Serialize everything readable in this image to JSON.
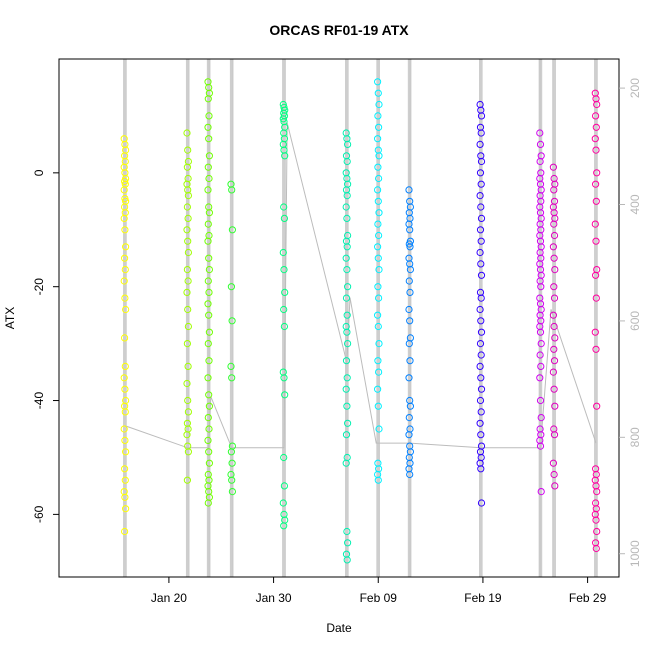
{
  "chart_data": {
    "type": "scatter",
    "title": "ORCAS RF01-19 ATX",
    "xlabel": "Date",
    "ylabel": "ATX",
    "x_ticks": [
      "Jan 20",
      "Jan 30",
      "Feb 09",
      "Feb 19",
      "Feb 29"
    ],
    "x_tick_days": [
      20,
      30,
      40,
      50,
      60
    ],
    "xlim_days": [
      9.5,
      63.0
    ],
    "y_ticks": [
      0,
      -20,
      -40,
      -60
    ],
    "ylim": [
      -71,
      20
    ],
    "y2_ticks": [
      200,
      400,
      600,
      800,
      1000
    ],
    "y2lim": [
      1040,
      150
    ],
    "grid": false,
    "flights": [
      {
        "day": 15.8,
        "color": "#ffff00",
        "atx": [
          6,
          5,
          4,
          3,
          2,
          1,
          0,
          -1,
          -1.5,
          -2,
          -3,
          -4.5,
          -5,
          -6,
          -7,
          -8,
          -10,
          -13,
          -15,
          -17,
          -19,
          -22,
          -24,
          -29,
          -34,
          -36,
          -38,
          -40,
          -41,
          -42,
          -45,
          -47,
          -49,
          -52,
          -54,
          -56,
          -57,
          -59,
          -63
        ]
      },
      {
        "day": 21.8,
        "color": "#a0ff00",
        "atx": [
          7,
          4,
          2,
          1,
          -1,
          -2,
          -3,
          -4,
          -6,
          -8,
          -10,
          -12,
          -14,
          -17,
          -19,
          -21,
          -24,
          -27,
          -30,
          -34,
          -37,
          -40,
          -42,
          -44,
          -45,
          -46,
          -48,
          -49,
          -54
        ]
      },
      {
        "day": 23.8,
        "color": "#70ff00",
        "atx": [
          16,
          15,
          14,
          13,
          10,
          8,
          6,
          3,
          1,
          -1,
          -3,
          -6,
          -7,
          -9,
          -11,
          -12,
          -15,
          -17,
          -19,
          -21,
          -23,
          -25,
          -28,
          -30,
          -33,
          -36,
          -39,
          -41,
          -43,
          -45,
          -47,
          -49,
          -51,
          -53,
          -54,
          -55,
          -56,
          -57,
          -58
        ]
      },
      {
        "day": 26.0,
        "color": "#30ff30",
        "atx": [
          -2,
          -3,
          -10,
          -20,
          -26,
          -34,
          -36,
          -48,
          -49,
          -51,
          -53,
          -54,
          -56
        ]
      },
      {
        "day": 31.0,
        "color": "#00ff80",
        "atx": [
          12,
          11.5,
          11,
          10.5,
          10,
          9.5,
          9,
          8,
          7,
          6,
          5,
          4,
          3,
          -6,
          -8,
          -14,
          -17,
          -21,
          -24,
          -27,
          -35,
          -36,
          -39,
          -50,
          -55,
          -58,
          -60,
          -61,
          -62
        ]
      },
      {
        "day": 37.0,
        "color": "#00f0b0",
        "atx": [
          7,
          6,
          5,
          3,
          2,
          0,
          -1,
          -2,
          -3,
          -4,
          -6,
          -8,
          -11,
          -12,
          -13,
          -15,
          -17,
          -20,
          -22,
          -25,
          -27,
          -28,
          -30,
          -33,
          -36,
          -38,
          -41,
          -44,
          -46,
          -50,
          -51,
          -63,
          -65,
          -67,
          -68
        ]
      },
      {
        "day": 40.0,
        "color": "#00f0ff",
        "atx": [
          16,
          14,
          12,
          10,
          8,
          6,
          4,
          3,
          1,
          -1,
          -3,
          -5,
          -7,
          -9,
          -11,
          -13,
          -15,
          -17,
          -20,
          -22,
          -25,
          -27,
          -30,
          -33,
          -35,
          -38,
          -41,
          -45,
          -51,
          -52,
          -53,
          -54
        ]
      },
      {
        "day": 43.0,
        "color": "#0080ff",
        "atx": [
          -3,
          -5,
          -6,
          -7,
          -8,
          -9,
          -10,
          -12,
          -12.5,
          -13,
          -15,
          -16,
          -17,
          -19,
          -21,
          -24,
          -26,
          -29,
          -30,
          -33,
          -36,
          -40,
          -41,
          -43,
          -45,
          -46,
          -48,
          -49,
          -50,
          -51,
          -52,
          -53
        ]
      },
      {
        "day": 49.8,
        "color": "#3000ff",
        "atx": [
          12,
          11,
          10,
          8,
          7,
          5,
          3,
          2,
          0,
          -2,
          -4,
          -6,
          -8,
          -10,
          -12,
          -14,
          -16,
          -18,
          -21,
          -22,
          -24,
          -26,
          -28,
          -30,
          -32,
          -34,
          -36,
          -38,
          -40,
          -42,
          -44,
          -46,
          -48,
          -49,
          -50,
          -51,
          -52,
          -58
        ]
      },
      {
        "day": 55.5,
        "color": "#d000f0",
        "atx": [
          7,
          5,
          3,
          2,
          0,
          -1,
          -2,
          -3,
          -4,
          -5,
          -6,
          -7,
          -8,
          -9,
          -10,
          -11,
          -12,
          -13,
          -14,
          -15,
          -16,
          -17,
          -18,
          -19,
          -20,
          -22,
          -23,
          -24,
          -25,
          -26,
          -27,
          -28,
          -30,
          -32,
          -34,
          -36,
          -40,
          -43,
          -45,
          -46,
          -47,
          -48,
          -56
        ]
      },
      {
        "day": 56.8,
        "color": "#e000c0",
        "atx": [
          1,
          -1,
          -2,
          -3,
          -5,
          -6,
          -7,
          -8,
          -9,
          -11,
          -13,
          -15,
          -17,
          -20,
          -22,
          -25,
          -27,
          -29,
          -31,
          -33,
          -35,
          -38,
          -41,
          -45,
          -46,
          -51,
          -53,
          -55
        ]
      },
      {
        "day": 60.8,
        "color": "#ff00a0",
        "atx": [
          14,
          13,
          12,
          10,
          8,
          6,
          4,
          0,
          -2,
          -5,
          -9,
          -12,
          -17,
          -18,
          -22,
          -28,
          -31,
          -41,
          -52,
          -53,
          -54,
          -55,
          -56,
          -58,
          -59,
          -60,
          -61,
          -63,
          -65,
          -66
        ]
      }
    ],
    "pressure_trace": {
      "line_color": "#bcbcbc",
      "points": [
        [
          15.8,
          780
        ],
        [
          21.8,
          818
        ],
        [
          23.8,
          818
        ],
        [
          24.0,
          730
        ],
        [
          26.0,
          818
        ],
        [
          31.0,
          818
        ],
        [
          31.3,
          260
        ],
        [
          37.0,
          672
        ],
        [
          37.3,
          560
        ],
        [
          39.8,
          810
        ],
        [
          43.0,
          810
        ],
        [
          49.8,
          818
        ],
        [
          55.5,
          818
        ],
        [
          56.5,
          580
        ],
        [
          60.8,
          810
        ]
      ]
    },
    "vertical_trace": {
      "line_color": "#c4c4c4",
      "top": 140,
      "bottom": 1040
    }
  }
}
